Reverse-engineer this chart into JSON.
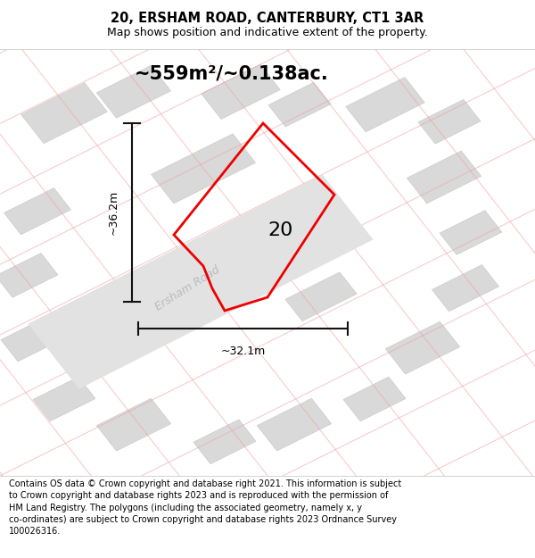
{
  "title": "20, ERSHAM ROAD, CANTERBURY, CT1 3AR",
  "subtitle": "Map shows position and indicative extent of the property.",
  "area_text": "~559m²/~0.138ac.",
  "label_number": "20",
  "dim_horizontal": "~32.1m",
  "dim_vertical": "~36.2m",
  "road_label": "Ersham Road",
  "footer": "Contains OS data © Crown copyright and database right 2021. This information is subject to Crown copyright and database rights 2023 and is reproduced with the permission of HM Land Registry. The polygons (including the associated geometry, namely x, y co-ordinates) are subject to Crown copyright and database rights 2023 Ordnance Survey 100026316.",
  "bg_color": "#ffffff",
  "map_bg": "#f8f8f8",
  "building_color": "#d9d9d9",
  "building_edge": "#cccccc",
  "boundary_color": "#f0a0a0",
  "road_fill": "#e2e2e2",
  "property_color": "#ee0000",
  "dim_color": "#111111",
  "title_fontsize": 10.5,
  "subtitle_fontsize": 9,
  "area_fontsize": 15,
  "label_fontsize": 16,
  "footer_fontsize": 7.0,
  "road_label_color": "#bbbbbb",
  "road_label_fontsize": 9,
  "dim_fontsize": 9
}
